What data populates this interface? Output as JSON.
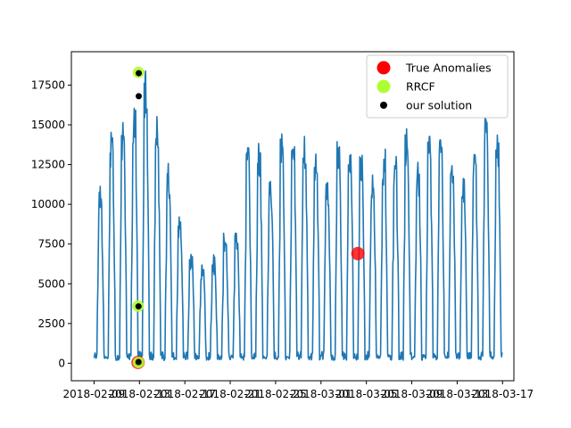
{
  "chart_data": {
    "type": "line",
    "title": "",
    "xlabel": "",
    "ylabel": "",
    "xlim": [
      "2018-02-07",
      "2018-03-18"
    ],
    "ylim": [
      -1100,
      19600
    ],
    "x_ticks": [
      "2018-02-09",
      "2018-02-13",
      "2018-02-17",
      "2018-02-21",
      "2018-02-25",
      "2018-03-01",
      "2018-03-05",
      "2018-03-09",
      "2018-03-13",
      "2018-03-17"
    ],
    "y_ticks": [
      0,
      2500,
      5000,
      7500,
      10000,
      12500,
      15000,
      17500
    ],
    "grid": false,
    "legend_position": "upper right",
    "series": [
      {
        "name": "",
        "color": "#1f77b4",
        "style": "line",
        "x_range": [
          "2018-02-09",
          "2018-03-16"
        ],
        "daily_peaks": [
          {
            "date": "2018-02-09",
            "value": 11100
          },
          {
            "date": "2018-02-10",
            "value": 14500
          },
          {
            "date": "2018-02-11",
            "value": 15200
          },
          {
            "date": "2018-02-12",
            "value": 16100
          },
          {
            "date": "2018-02-13",
            "value": 18300
          },
          {
            "date": "2018-02-14",
            "value": 15100
          },
          {
            "date": "2018-02-15",
            "value": 12200
          },
          {
            "date": "2018-02-16",
            "value": 8800
          },
          {
            "date": "2018-02-17",
            "value": 6700
          },
          {
            "date": "2018-02-18",
            "value": 6300
          },
          {
            "date": "2018-02-19",
            "value": 6500
          },
          {
            "date": "2018-02-20",
            "value": 7800
          },
          {
            "date": "2018-02-21",
            "value": 8200
          },
          {
            "date": "2018-02-22",
            "value": 13800
          },
          {
            "date": "2018-02-23",
            "value": 13500
          },
          {
            "date": "2018-02-24",
            "value": 11200
          },
          {
            "date": "2018-02-25",
            "value": 14000
          },
          {
            "date": "2018-02-26",
            "value": 13800
          },
          {
            "date": "2018-02-27",
            "value": 14000
          },
          {
            "date": "2018-02-28",
            "value": 13500
          },
          {
            "date": "2018-03-01",
            "value": 11500
          },
          {
            "date": "2018-03-02",
            "value": 13700
          },
          {
            "date": "2018-03-03",
            "value": 13500
          },
          {
            "date": "2018-03-04",
            "value": 12900
          },
          {
            "date": "2018-03-05",
            "value": 11400
          },
          {
            "date": "2018-03-06",
            "value": 13200
          },
          {
            "date": "2018-03-07",
            "value": 12800
          },
          {
            "date": "2018-03-08",
            "value": 14300
          },
          {
            "date": "2018-03-09",
            "value": 12200
          },
          {
            "date": "2018-03-10",
            "value": 13900
          },
          {
            "date": "2018-03-11",
            "value": 14000
          },
          {
            "date": "2018-03-12",
            "value": 12800
          },
          {
            "date": "2018-03-13",
            "value": 11300
          },
          {
            "date": "2018-03-14",
            "value": 13500
          },
          {
            "date": "2018-03-15",
            "value": 15300
          },
          {
            "date": "2018-03-16",
            "value": 14000
          }
        ],
        "daily_min": 300
      },
      {
        "name": "True Anomalies",
        "style": "scatter",
        "color": "#ff0000",
        "points": [
          {
            "x": "2018-02-12 21:00",
            "y": 50
          },
          {
            "x": "2018-03-04 06:00",
            "y": 6900
          }
        ]
      },
      {
        "name": "RRCF",
        "style": "scatter",
        "color": "#adff2f",
        "points": [
          {
            "x": "2018-02-12 22:00",
            "y": 18300
          },
          {
            "x": "2018-02-12 21:00",
            "y": 3600
          },
          {
            "x": "2018-02-12 22:00",
            "y": 50
          }
        ]
      },
      {
        "name": "our solution",
        "style": "scatter",
        "color": "#000000",
        "points": [
          {
            "x": "2018-02-12 22:30",
            "y": 18250
          },
          {
            "x": "2018-02-12 22:30",
            "y": 16800
          },
          {
            "x": "2018-02-12 22:00",
            "y": 3580
          },
          {
            "x": "2018-02-12 22:00",
            "y": 80
          }
        ]
      }
    ]
  }
}
